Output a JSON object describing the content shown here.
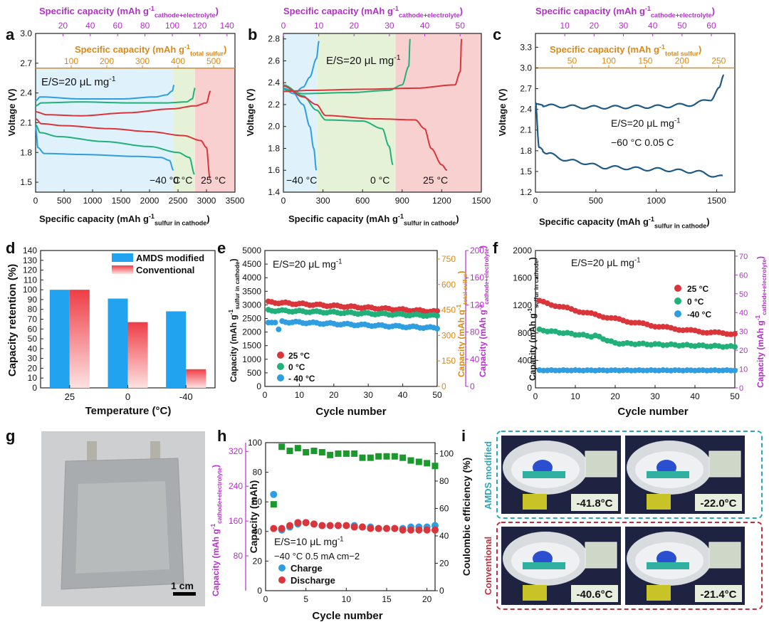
{
  "colors": {
    "magenta": "#b330c8",
    "orange": "#d98a17",
    "red": "#d9353a",
    "green": "#22b07a",
    "blue": "#2e9ee0",
    "navy": "#1f5a86",
    "barBlue": "#21a3f0",
    "barRed": "#ee3d45",
    "teal": "#2aa8b8",
    "crimson": "#c03040"
  },
  "chart_data": [
    {
      "panel": "a",
      "type": "line",
      "title": "",
      "xlabel": "Specific capacity (mAh g-1 sulfur in cathode)",
      "xlabel_main": "Specific capacity (mAh g",
      "xlabel_sub": "sulfur in cathode",
      "ylabel": "Voltage (V)",
      "top_axis_label": "Specific capacity (mAh g-1 cathode+electrolyte)",
      "top_axis_main": "Specific capacity (mAh g",
      "top_axis_sub": "cathode+electrolyte",
      "inner_axis_label": "Specific capacity (mAh g-1 total sulfur)",
      "inner_axis_main": "Specific capacity (mAh g",
      "inner_axis_sub": "total sulfur",
      "xlim": [
        0,
        3500
      ],
      "ylim": [
        1.4,
        3.0
      ],
      "xticks": [
        0,
        500,
        1000,
        1500,
        2000,
        2500,
        3000,
        3500
      ],
      "yticks": [
        1.5,
        1.8,
        2.1,
        2.4,
        2.7,
        3.0
      ],
      "top_ticks": [
        20,
        40,
        60,
        80,
        100,
        120,
        140
      ],
      "inner_ticks": [
        100,
        200,
        300,
        400,
        500
      ],
      "annotation": "E/S=20 μL mg-1",
      "annotation_main": "E/S=20 μL mg",
      "annotation_sup": "-1",
      "series": [
        {
          "name": "-40 °C",
          "label": "−40 °C",
          "color": "blue",
          "discharge": [
            [
              0,
              2.06
            ],
            [
              40,
              1.85
            ],
            [
              150,
              1.79
            ],
            [
              800,
              1.78
            ],
            [
              1800,
              1.76
            ],
            [
              2200,
              1.75
            ],
            [
              2350,
              1.72
            ],
            [
              2420,
              1.62
            ]
          ],
          "charge": [
            [
              0,
              2.32
            ],
            [
              80,
              2.36
            ],
            [
              800,
              2.34
            ],
            [
              1500,
              2.34
            ],
            [
              2100,
              2.36
            ],
            [
              2300,
              2.38
            ],
            [
              2400,
              2.42
            ],
            [
              2430,
              2.48
            ]
          ]
        },
        {
          "name": "0 °C",
          "label": "0 °C",
          "color": "green",
          "discharge": [
            [
              0,
              2.08
            ],
            [
              80,
              2.0
            ],
            [
              400,
              1.96
            ],
            [
              1200,
              1.91
            ],
            [
              2000,
              1.86
            ],
            [
              2500,
              1.8
            ],
            [
              2700,
              1.75
            ],
            [
              2790,
              1.58
            ]
          ],
          "charge": [
            [
              0,
              2.27
            ],
            [
              100,
              2.3
            ],
            [
              800,
              2.31
            ],
            [
              1600,
              2.3
            ],
            [
              2300,
              2.3
            ],
            [
              2650,
              2.31
            ],
            [
              2750,
              2.34
            ],
            [
              2800,
              2.45
            ]
          ]
        },
        {
          "name": "25 °C",
          "label": "25 °C",
          "color": "red",
          "discharge": [
            [
              0,
              2.14
            ],
            [
              100,
              2.09
            ],
            [
              500,
              2.07
            ],
            [
              1300,
              2.04
            ],
            [
              2000,
              2.01
            ],
            [
              2600,
              1.97
            ],
            [
              2900,
              1.92
            ],
            [
              3000,
              1.85
            ],
            [
              3060,
              1.54
            ]
          ],
          "charge": [
            [
              0,
              2.21
            ],
            [
              200,
              2.18
            ],
            [
              800,
              2.17
            ],
            [
              1600,
              2.2
            ],
            [
              2400,
              2.24
            ],
            [
              2800,
              2.27
            ],
            [
              3000,
              2.3
            ],
            [
              3070,
              2.42
            ]
          ]
        }
      ]
    },
    {
      "panel": "b",
      "type": "line",
      "xlabel": "Specific capacity (mAh g-1 sulfur in cathode)",
      "xlabel_main": "Specific capacity (mAh g",
      "xlabel_sub": "sulfur in cathode",
      "ylabel": "Voltage (V)",
      "top_axis_label": "Specific capacity (mAh g-1 cathode+electrolyte)",
      "top_axis_main": "Specific capacity (mAh g",
      "top_axis_sub": "cathode+electrolyte",
      "xlim": [
        0,
        1500
      ],
      "ylim": [
        1.4,
        2.85
      ],
      "xticks": [
        0,
        300,
        600,
        900,
        1200,
        1500
      ],
      "yticks": [
        1.4,
        1.6,
        1.8,
        2.0,
        2.2,
        2.4,
        2.6,
        2.8
      ],
      "top_ticks": [
        0,
        10,
        20,
        30,
        40,
        50
      ],
      "annotation": "E/S=20 μL mg-1",
      "annotation_main": "E/S=20 μL mg",
      "annotation_sup": "-1",
      "series": [
        {
          "name": "-40 °C",
          "label": "−40 °C",
          "color": "blue",
          "discharge": [
            [
              0,
              2.35
            ],
            [
              60,
              2.33
            ],
            [
              150,
              2.2
            ],
            [
              200,
              2.0
            ],
            [
              230,
              1.8
            ],
            [
              250,
              1.6
            ]
          ],
          "charge": [
            [
              0,
              2.34
            ],
            [
              80,
              2.3
            ],
            [
              150,
              2.36
            ],
            [
              200,
              2.45
            ],
            [
              250,
              2.62
            ],
            [
              270,
              2.78
            ]
          ]
        },
        {
          "name": "0 °C",
          "label": "0 °C",
          "color": "green",
          "discharge": [
            [
              0,
              2.38
            ],
            [
              150,
              2.28
            ],
            [
              250,
              2.15
            ],
            [
              320,
              2.06
            ],
            [
              600,
              2.05
            ],
            [
              750,
              1.98
            ],
            [
              800,
              1.82
            ],
            [
              830,
              1.65
            ]
          ],
          "charge": [
            [
              0,
              2.34
            ],
            [
              150,
              2.3
            ],
            [
              500,
              2.31
            ],
            [
              800,
              2.33
            ],
            [
              900,
              2.38
            ],
            [
              950,
              2.55
            ],
            [
              960,
              2.8
            ]
          ]
        },
        {
          "name": "25 °C",
          "label": "25 °C",
          "color": "red",
          "discharge": [
            [
              0,
              2.37
            ],
            [
              150,
              2.27
            ],
            [
              250,
              2.2
            ],
            [
              320,
              2.1
            ],
            [
              700,
              2.07
            ],
            [
              1000,
              2.06
            ],
            [
              1070,
              1.98
            ],
            [
              1120,
              1.8
            ],
            [
              1200,
              1.65
            ],
            [
              1240,
              1.6
            ]
          ],
          "charge": [
            [
              0,
              2.32
            ],
            [
              200,
              2.33
            ],
            [
              600,
              2.34
            ],
            [
              1000,
              2.35
            ],
            [
              1300,
              2.38
            ],
            [
              1340,
              2.5
            ],
            [
              1350,
              2.8
            ]
          ]
        }
      ]
    },
    {
      "panel": "c",
      "type": "line",
      "xlabel_main": "Specific capacity (mAh g",
      "xlabel_sub": "sulfur in cathode",
      "ylabel": "Voltage (V)",
      "top_axis_main": "Specific capacity (mAh g",
      "top_axis_sub": "cathode+electrolyte",
      "inner_axis_main": "Specific capacity (mAh g",
      "inner_axis_sub": "total sulfur",
      "xlim": [
        0,
        1650
      ],
      "ylim": [
        1.2,
        3.5
      ],
      "xticks": [
        0,
        500,
        1000,
        1500
      ],
      "yticks": [
        1.2,
        1.5,
        1.8,
        2.1,
        2.4,
        2.7,
        3.0,
        3.3
      ],
      "top_ticks": [
        10,
        20,
        30,
        40,
        50,
        60
      ],
      "inner_ticks": [
        50,
        100,
        150,
        200,
        250
      ],
      "annotation_main": "E/S=20 μL mg",
      "annotation_sup": "-1",
      "annotation2": "−60 °C  0.05 C",
      "series": [
        {
          "name": "-60 °C",
          "color": "navy",
          "discharge": [
            [
              0,
              2.5
            ],
            [
              30,
              1.85
            ],
            [
              100,
              1.75
            ],
            [
              300,
              1.65
            ],
            [
              600,
              1.56
            ],
            [
              1000,
              1.53
            ],
            [
              1300,
              1.5
            ],
            [
              1550,
              1.42
            ]
          ],
          "charge": [
            [
              0,
              2.48
            ],
            [
              100,
              2.45
            ],
            [
              500,
              2.43
            ],
            [
              1000,
              2.44
            ],
            [
              1300,
              2.47
            ],
            [
              1450,
              2.55
            ],
            [
              1520,
              2.7
            ],
            [
              1560,
              2.88
            ]
          ]
        }
      ]
    },
    {
      "panel": "d",
      "type": "bar",
      "xlabel": "Temperature (°C)",
      "ylabel": "Capacity retention (%)",
      "categories": [
        "25",
        "0",
        "-40"
      ],
      "ylim": [
        0,
        140
      ],
      "yticks": [
        0,
        10,
        20,
        30,
        40,
        50,
        60,
        70,
        80,
        90,
        100,
        110,
        120,
        130,
        140
      ],
      "series": [
        {
          "name": "AMDS modified",
          "values": [
            100,
            91,
            78
          ],
          "color": "barBlue"
        },
        {
          "name": "Conventional",
          "values": [
            100,
            67,
            19
          ],
          "color": "barRed"
        }
      ]
    },
    {
      "panel": "e",
      "type": "scatter",
      "xlabel": "Cycle number",
      "ylabel_main": "Capacity (mAh g",
      "ylabel_sub": "sulfur in cathode",
      "right_label1_main": "Capacity (mAh g",
      "right_label1_sub": "total sulfur",
      "right_label2_main": "Capacity (mAh g",
      "right_label2_sub": "cathode+electrolyte",
      "xlim": [
        0,
        50
      ],
      "ylim": [
        0,
        5000
      ],
      "xticks": [
        0,
        10,
        20,
        30,
        40,
        50
      ],
      "yticks": [
        0,
        500,
        1000,
        1500,
        2000,
        2500,
        3000,
        3500,
        4000,
        4500,
        5000
      ],
      "right_ticks1": [
        0,
        150,
        300,
        450,
        600,
        750
      ],
      "right_ticks2": [
        0,
        40,
        80,
        120,
        160,
        200
      ],
      "annotation_main": "E/S=20 μL mg",
      "annotation_sup": "-1",
      "series": [
        {
          "name": "25 °C",
          "color": "red",
          "start": 3100,
          "end": 2750
        },
        {
          "name": "0 °C",
          "color": "green",
          "start": 2800,
          "end": 2600
        },
        {
          "name": "- 40 °C",
          "color": "blue",
          "start": 2400,
          "end": 2150
        }
      ]
    },
    {
      "panel": "f",
      "type": "scatter",
      "xlabel": "Cycle number",
      "ylabel_main": "Capacity (mAh g",
      "ylabel_sub": "sulfur in cathode",
      "right_label_main": "Capacity (mAh g",
      "right_label_sub": "cathode+electrolyte",
      "xlim": [
        0,
        50
      ],
      "ylim": [
        0,
        2000
      ],
      "xticks": [
        0,
        10,
        20,
        30,
        40,
        50
      ],
      "yticks": [
        0,
        400,
        800,
        1200,
        1600,
        2000
      ],
      "right_ticks": [
        0,
        10,
        20,
        30,
        40,
        50,
        60,
        70
      ],
      "annotation_main": "E/S=20 μL mg",
      "annotation_sup": "-1",
      "series": [
        {
          "name": "25 °C",
          "color": "red",
          "start": 1260,
          "end": 790
        },
        {
          "name": "0 °C",
          "color": "green",
          "start": 850,
          "end": 600
        },
        {
          "name": "-40 °C",
          "color": "blue",
          "start": 255,
          "end": 260
        }
      ]
    },
    {
      "panel": "h",
      "type": "scatter",
      "xlabel": "Cycle number",
      "ylabel": "Capacity (mAh)",
      "right_label": "Coulombic efficiency (%)",
      "left_label_main": "Capacity (mAh g",
      "left_label_sub": "cathode+electrolyte",
      "xlim": [
        0,
        21
      ],
      "ylim": [
        0,
        100
      ],
      "xticks": [
        0,
        5,
        10,
        15,
        20
      ],
      "yticks": [
        0,
        20,
        40,
        60,
        80,
        100
      ],
      "right_ticks": [
        0,
        20,
        40,
        60,
        80,
        100
      ],
      "left_ticks": [
        80,
        160,
        240,
        320
      ],
      "annotation_main": "E/S=10 μL mg",
      "annotation_sup": "-1",
      "annotation2": "−40 °C  0.5 mA cm−2",
      "series": [
        {
          "name": "Charge",
          "color": "blue",
          "values": [
            65,
            41,
            43,
            45,
            46,
            45,
            44,
            44,
            44,
            44,
            44,
            43,
            43,
            42,
            42,
            42,
            42,
            43,
            43,
            43,
            44
          ]
        },
        {
          "name": "Discharge",
          "color": "red",
          "values": [
            42,
            42,
            44,
            46,
            46,
            45,
            44,
            44,
            44,
            44,
            43,
            43,
            42,
            42,
            42,
            42,
            41,
            41,
            41,
            41,
            41
          ]
        },
        {
          "name": "Coulombic efficiency",
          "color": "#1a9a2a",
          "values": [
            63,
            105,
            102,
            104,
            101,
            102,
            101,
            99,
            100,
            100,
            100,
            97,
            97,
            98,
            98,
            98,
            97,
            95,
            94,
            93,
            91
          ]
        }
      ]
    }
  ],
  "panel_labels": [
    "a",
    "b",
    "c",
    "d",
    "e",
    "f",
    "g",
    "h",
    "i"
  ],
  "photos": {
    "g_scale": "1 cm",
    "i_row1_label": "AMDS modified",
    "i_row2_label": "Conventional",
    "i_readouts": [
      "-41.8°C",
      "-22.0°C",
      "-40.6°C",
      "-21.4°C"
    ]
  }
}
